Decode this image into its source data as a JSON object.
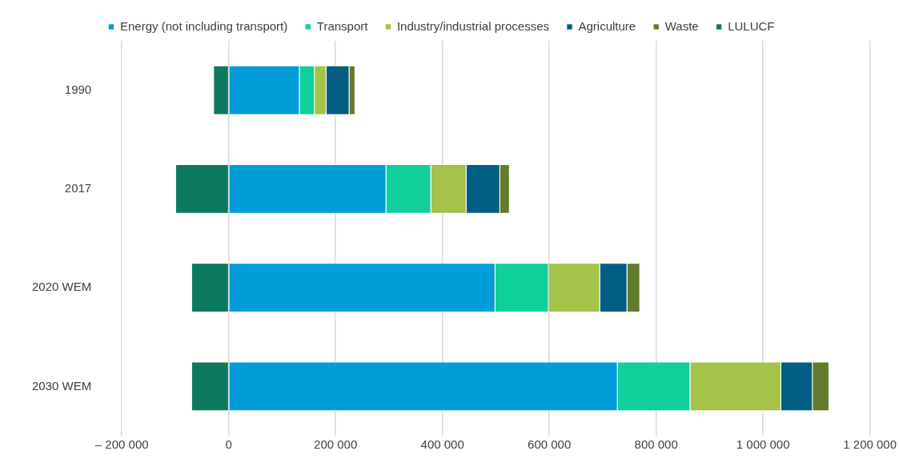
{
  "chart_data": {
    "type": "bar",
    "orientation": "horizontal",
    "stacked": true,
    "categories": [
      "1990",
      "2017",
      "2020 WEM",
      "2030 WEM"
    ],
    "series": [
      {
        "name": "Energy (not including transport)",
        "color": "#009dd9",
        "values": [
          133000,
          295000,
          499000,
          728000
        ]
      },
      {
        "name": "Transport",
        "color": "#10cf9b",
        "values": [
          28000,
          84000,
          100000,
          136000
        ]
      },
      {
        "name": "Industry/industrial processes",
        "color": "#a5c249",
        "values": [
          22000,
          66000,
          96000,
          170000
        ]
      },
      {
        "name": "Agriculture",
        "color": "#005e82",
        "values": [
          43000,
          63000,
          51000,
          59000
        ]
      },
      {
        "name": "Waste",
        "color": "#637b2a",
        "values": [
          11000,
          18000,
          24000,
          31000
        ]
      },
      {
        "name": "LULUCF",
        "color": "#0c7a5d",
        "values": [
          -29000,
          -100000,
          -70000,
          -70000
        ]
      }
    ],
    "xlim": [
      -200000,
      1200000
    ],
    "xticks": [
      {
        "value": -200000,
        "label": "– 200 000"
      },
      0,
      {
        "value": 200000,
        "label": "200 000"
      },
      {
        "value": 400000,
        "label": "400 000"
      },
      {
        "value": 600000,
        "label": "600 000"
      },
      {
        "value": 800000,
        "label": "800 000"
      },
      {
        "value": 1000000,
        "label": "1 000 000"
      },
      {
        "value": 1200000,
        "label": "1 200 000"
      }
    ],
    "grid": "x",
    "legend": "top"
  }
}
